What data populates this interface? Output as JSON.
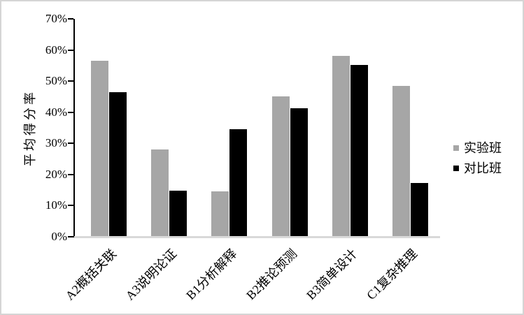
{
  "chart_data": {
    "type": "bar",
    "title": "",
    "xlabel": "",
    "ylabel": "平均得分率",
    "categories": [
      "A2概括关联",
      "A3说明论证",
      "B1分析解释",
      "B2推论预测",
      "B3简单设计",
      "C1复杂推理"
    ],
    "series": [
      {
        "name": "实验班",
        "color": "#A6A6A6",
        "values": [
          56.5,
          28.0,
          14.5,
          45.2,
          58.0,
          48.4
        ]
      },
      {
        "name": "对比班",
        "color": "#000000",
        "values": [
          46.4,
          14.8,
          34.5,
          41.3,
          55.1,
          17.2
        ]
      }
    ],
    "ylim": [
      0,
      70
    ],
    "ytick_labels": [
      "70%",
      "60%",
      "50%",
      "40%",
      "30%",
      "20%",
      "10%",
      "0%"
    ],
    "ytick_values": [
      70,
      60,
      50,
      40,
      30,
      20,
      10,
      0
    ],
    "grid": false,
    "legend_position": "right",
    "colors": {
      "axis_line": "#000000",
      "baseline": "#D9D9D9",
      "frame": "#D5D5D5",
      "background": "#FFFFFF"
    }
  }
}
